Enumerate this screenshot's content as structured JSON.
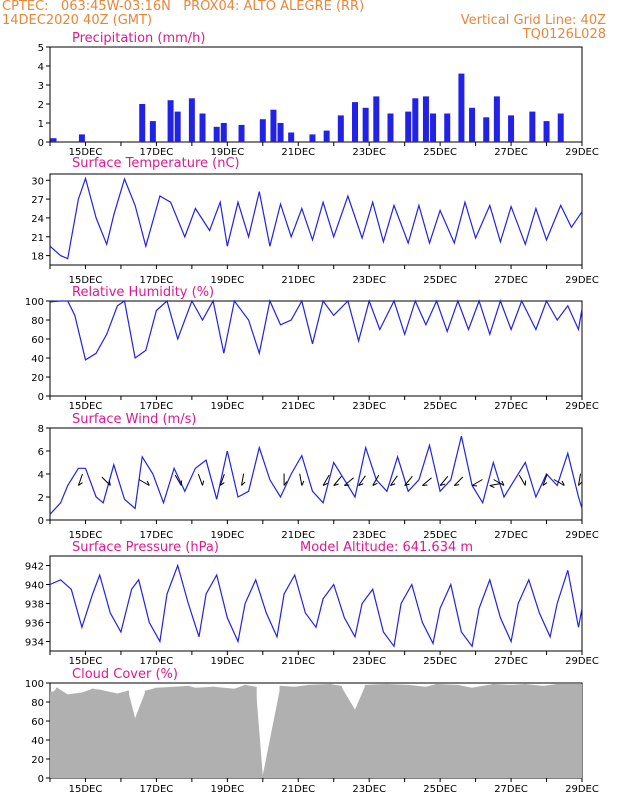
{
  "header": {
    "line1": "CPTEC:   063:45W-03:16N   PROX04: ALTO ALEGRE (RR)",
    "line2_left": "14DEC2020 40Z (GMT)",
    "line2_right": "Vertical Grid Line: 40Z",
    "code": "TQ0126L028"
  },
  "colors": {
    "header": "#e8863a",
    "title": "#e0198c",
    "series": "#2222e6",
    "cloud": "#b0b0b0",
    "wind_barb": "#000000"
  },
  "chart_data": [
    {
      "type": "bar",
      "title": "Precipitation (mm/h)",
      "ylim": [
        0,
        5
      ],
      "yticks": [
        0,
        1,
        2,
        3,
        4,
        5
      ],
      "x_range_days": [
        14,
        29
      ],
      "x_ticks": [
        "15DEC",
        "17DEC",
        "19DEC",
        "21DEC",
        "23DEC",
        "25DEC",
        "27DEC",
        "29DEC"
      ],
      "x": [
        14.1,
        14.9,
        16.6,
        16.9,
        17.4,
        17.6,
        18.0,
        18.3,
        18.7,
        18.9,
        19.4,
        20.0,
        20.3,
        20.5,
        20.8,
        21.4,
        21.8,
        22.2,
        22.6,
        22.9,
        23.2,
        23.6,
        24.1,
        24.3,
        24.6,
        24.8,
        25.2,
        25.6,
        25.9,
        26.3,
        26.6,
        27.0,
        27.6,
        28.0,
        28.4
      ],
      "values": [
        0.2,
        0.4,
        2.0,
        1.1,
        2.2,
        1.6,
        2.3,
        1.5,
        0.8,
        1.0,
        0.9,
        1.2,
        1.7,
        1.0,
        0.5,
        0.4,
        0.6,
        1.4,
        2.1,
        1.8,
        2.4,
        1.5,
        1.6,
        2.3,
        2.4,
        1.5,
        1.5,
        3.6,
        1.8,
        1.3,
        2.4,
        1.4,
        1.6,
        1.1,
        1.5
      ]
    },
    {
      "type": "line",
      "title": "Surface Temperature (nC)",
      "ylim": [
        16.5,
        31
      ],
      "yticks": [
        18,
        21,
        24,
        27,
        30
      ],
      "x_range_days": [
        14,
        29
      ],
      "x_ticks": [
        "15DEC",
        "17DEC",
        "19DEC",
        "21DEC",
        "23DEC",
        "25DEC",
        "27DEC",
        "29DEC"
      ],
      "x": [
        14.0,
        14.3,
        14.5,
        14.8,
        15.0,
        15.3,
        15.6,
        15.8,
        16.1,
        16.4,
        16.7,
        17.1,
        17.4,
        17.8,
        18.1,
        18.5,
        18.8,
        19.0,
        19.3,
        19.6,
        19.9,
        20.2,
        20.5,
        20.8,
        21.1,
        21.4,
        21.7,
        22.0,
        22.4,
        22.8,
        23.1,
        23.4,
        23.7,
        24.1,
        24.4,
        24.7,
        25.0,
        25.4,
        25.7,
        26.0,
        26.4,
        26.7,
        27.0,
        27.4,
        27.7,
        28.0,
        28.4,
        28.7,
        29.0
      ],
      "values": [
        19.5,
        18.0,
        17.5,
        27.0,
        30.3,
        24.0,
        19.8,
        24.5,
        30.2,
        26.0,
        19.5,
        27.5,
        26.5,
        21.0,
        25.5,
        22.0,
        26.5,
        19.5,
        26.5,
        21.0,
        28.2,
        19.5,
        26.2,
        21.0,
        25.5,
        20.5,
        26.5,
        21.0,
        27.5,
        20.8,
        26.5,
        20.2,
        26.0,
        20.0,
        26.0,
        20.0,
        25.2,
        20.0,
        26.5,
        20.8,
        26.0,
        20.2,
        25.8,
        19.8,
        25.5,
        20.5,
        26.0,
        22.5,
        25.0
      ]
    },
    {
      "type": "line",
      "title": "Relative Humidity (%)",
      "ylim": [
        0,
        100
      ],
      "yticks": [
        0,
        20,
        40,
        60,
        80,
        100
      ],
      "x_range_days": [
        14,
        29
      ],
      "x_ticks": [
        "15DEC",
        "17DEC",
        "19DEC",
        "21DEC",
        "23DEC",
        "25DEC",
        "27DEC",
        "29DEC"
      ],
      "x": [
        14.0,
        14.3,
        14.5,
        14.7,
        15.0,
        15.3,
        15.6,
        15.9,
        16.1,
        16.4,
        16.7,
        17.0,
        17.3,
        17.6,
        18.0,
        18.3,
        18.6,
        18.9,
        19.2,
        19.6,
        19.9,
        20.2,
        20.5,
        20.8,
        21.1,
        21.4,
        21.7,
        22.0,
        22.4,
        22.7,
        23.0,
        23.3,
        23.7,
        24.0,
        24.3,
        24.6,
        24.9,
        25.2,
        25.5,
        25.8,
        26.1,
        26.4,
        26.7,
        27.0,
        27.3,
        27.7,
        28.0,
        28.3,
        28.6,
        28.9,
        29.0
      ],
      "values": [
        99,
        100,
        100,
        85,
        38,
        45,
        65,
        95,
        100,
        40,
        48,
        90,
        100,
        60,
        100,
        80,
        100,
        45,
        100,
        80,
        45,
        100,
        75,
        80,
        100,
        55,
        100,
        85,
        100,
        58,
        100,
        70,
        100,
        65,
        100,
        75,
        100,
        68,
        100,
        70,
        100,
        65,
        100,
        70,
        100,
        70,
        100,
        80,
        95,
        70,
        92
      ]
    },
    {
      "type": "line",
      "title": "Surface Wind (m/s)",
      "ylim": [
        0,
        8
      ],
      "yticks": [
        0,
        2,
        4,
        6,
        8
      ],
      "x_range_days": [
        14,
        29
      ],
      "x_ticks": [
        "15DEC",
        "17DEC",
        "19DEC",
        "21DEC",
        "23DEC",
        "25DEC",
        "27DEC",
        "29DEC"
      ],
      "x": [
        14.0,
        14.3,
        14.5,
        14.8,
        15.0,
        15.3,
        15.5,
        15.8,
        16.1,
        16.4,
        16.6,
        16.9,
        17.2,
        17.5,
        17.8,
        18.1,
        18.4,
        18.7,
        19.0,
        19.3,
        19.6,
        19.9,
        20.2,
        20.5,
        20.8,
        21.1,
        21.4,
        21.7,
        22.0,
        22.3,
        22.6,
        22.9,
        23.2,
        23.5,
        23.8,
        24.1,
        24.4,
        24.7,
        25.0,
        25.3,
        25.6,
        25.9,
        26.2,
        26.5,
        26.8,
        27.1,
        27.4,
        27.7,
        28.0,
        28.3,
        28.6,
        28.9,
        29.0
      ],
      "values": [
        0.5,
        1.5,
        3.0,
        4.5,
        4.5,
        2.0,
        1.5,
        4.8,
        1.8,
        1.0,
        5.5,
        4.0,
        1.5,
        4.5,
        2.5,
        4.5,
        5.2,
        1.8,
        6.0,
        2.0,
        2.5,
        6.3,
        3.5,
        2.0,
        4.0,
        5.6,
        2.5,
        1.5,
        5.0,
        3.5,
        2.0,
        6.3,
        3.5,
        2.5,
        5.5,
        2.5,
        3.5,
        6.5,
        2.5,
        3.5,
        7.3,
        3.0,
        1.5,
        5.0,
        2.0,
        3.5,
        5.0,
        2.0,
        4.0,
        3.0,
        5.8,
        2.0,
        1.0
      ]
    },
    {
      "type": "line",
      "title": "Surface Pressure (hPa)",
      "annotation": "Model Altitude: 641.634  m",
      "ylim": [
        933,
        943
      ],
      "yticks": [
        934,
        936,
        938,
        940,
        942
      ],
      "x_range_days": [
        14,
        29
      ],
      "x_ticks": [
        "15DEC",
        "17DEC",
        "19DEC",
        "21DEC",
        "23DEC",
        "25DEC",
        "27DEC",
        "29DEC"
      ],
      "x": [
        14.0,
        14.3,
        14.6,
        14.9,
        15.2,
        15.4,
        15.7,
        16.0,
        16.3,
        16.5,
        16.8,
        17.1,
        17.3,
        17.6,
        17.9,
        18.2,
        18.4,
        18.7,
        19.0,
        19.3,
        19.5,
        19.8,
        20.1,
        20.4,
        20.6,
        20.9,
        21.2,
        21.5,
        21.7,
        22.0,
        22.3,
        22.6,
        22.8,
        23.1,
        23.4,
        23.7,
        23.9,
        24.2,
        24.5,
        24.8,
        25.0,
        25.3,
        25.6,
        25.9,
        26.1,
        26.4,
        26.7,
        27.0,
        27.2,
        27.5,
        27.8,
        28.1,
        28.3,
        28.6,
        28.9,
        29.0
      ],
      "values": [
        940,
        940.5,
        939.5,
        935.5,
        939,
        941,
        937,
        935,
        939.5,
        940.5,
        936,
        934,
        939,
        942,
        938,
        934.5,
        939,
        941,
        936.5,
        934,
        938,
        940.5,
        937,
        934.5,
        939,
        941,
        937,
        935.5,
        938.5,
        940,
        936.5,
        934.5,
        938,
        939.5,
        935,
        933.5,
        938,
        940,
        936,
        933.8,
        937.5,
        940,
        935,
        933.5,
        937.5,
        940.5,
        936.5,
        934,
        938,
        940.5,
        937,
        934.5,
        938,
        941.5,
        935.5,
        937.5
      ]
    },
    {
      "type": "bar",
      "title": "Cloud Cover (%)",
      "ylim": [
        0,
        100
      ],
      "yticks": [
        0,
        20,
        40,
        60,
        80,
        100
      ],
      "x_range_days": [
        14,
        29
      ],
      "x_ticks": [
        "15DEC",
        "17DEC",
        "19DEC",
        "21DEC",
        "23DEC",
        "25DEC",
        "27DEC",
        "29DEC"
      ],
      "x": [
        14.1,
        14.2,
        14.5,
        14.9,
        15.2,
        15.4,
        15.9,
        16.2,
        16.4,
        16.7,
        17.0,
        17.5,
        17.9,
        18.1,
        18.6,
        19.2,
        19.5,
        19.8,
        20.0,
        20.5,
        20.9,
        21.3,
        21.9,
        22.2,
        22.6,
        22.9,
        23.5,
        24.1,
        24.6,
        24.9,
        25.5,
        25.9,
        26.5,
        27.0,
        27.4,
        27.9,
        28.3,
        28.7
      ],
      "values": [
        91,
        95,
        88,
        90,
        94,
        93,
        89,
        92,
        63,
        92,
        95,
        96,
        97,
        95,
        96,
        94,
        98,
        96,
        3,
        97,
        96,
        98,
        99,
        97,
        72,
        98,
        99,
        98,
        96,
        99,
        98,
        95,
        99,
        98,
        99,
        97,
        99,
        99
      ]
    }
  ],
  "wind_barbs": {
    "x": [
      14.8,
      15.7,
      16.8,
      17.7,
      18.3,
      18.8,
      19.4,
      20.6,
      21.1,
      21.7,
      22.0,
      22.3,
      22.7,
      23.1,
      23.6,
      24.0,
      24.5,
      25.0,
      25.4,
      25.9,
      26.4,
      26.8,
      27.4,
      27.9,
      28.5,
      28.9
    ],
    "direction_deg": [
      20,
      315,
      300,
      330,
      340,
      20,
      10,
      0,
      350,
      30,
      40,
      50,
      35,
      30,
      35,
      40,
      50,
      40,
      45,
      60,
      80,
      300,
      330,
      20,
      300,
      10
    ]
  }
}
